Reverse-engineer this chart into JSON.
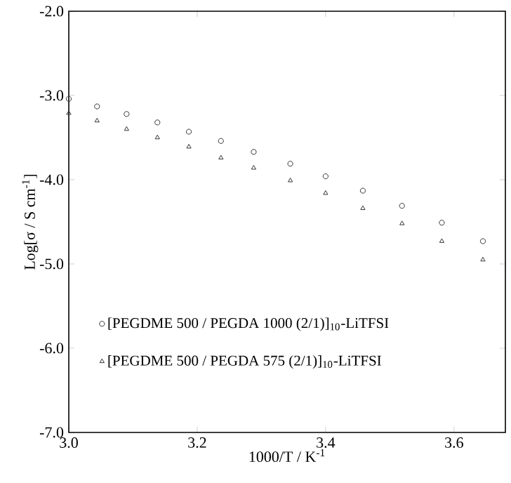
{
  "chart_data": {
    "type": "scatter",
    "xlabel": "1000/T  /  K$^{-1}$",
    "ylabel": "Log[σ / S cm$^{-1}$]",
    "xlim": [
      3.0,
      3.68
    ],
    "xticks": [
      {
        "value": 3.0,
        "label": "3.0"
      },
      {
        "value": 3.2,
        "label": "3.2"
      },
      {
        "value": 3.4,
        "label": "3.4"
      },
      {
        "value": 3.6,
        "label": "3.6"
      }
    ],
    "ylim": [
      -7.0,
      -2.0
    ],
    "yticks": [
      {
        "value": -7.0,
        "label": "-7.0"
      },
      {
        "value": -6.0,
        "label": "-6.0"
      },
      {
        "value": -5.0,
        "label": "-5.0"
      },
      {
        "value": -4.0,
        "label": "-4.0"
      },
      {
        "value": -3.0,
        "label": "-3.0"
      },
      {
        "value": -2.0,
        "label": "-2.0"
      }
    ],
    "grid": false,
    "legend": "bottom left",
    "series": [
      {
        "name": "[PEGDME 500 / PEGDA 1000 (2/1)]$_{10}$-LiTFSI",
        "color": "#333333",
        "marker": "circle",
        "x": [
          3.0,
          3.044,
          3.09,
          3.138,
          3.187,
          3.237,
          3.288,
          3.345,
          3.4,
          3.458,
          3.519,
          3.581,
          3.645
        ],
        "values": [
          -3.04,
          -3.13,
          -3.22,
          -3.32,
          -3.43,
          -3.54,
          -3.67,
          -3.81,
          -3.96,
          -4.13,
          -4.31,
          -4.51,
          -4.73
        ]
      },
      {
        "name": "[PEGDME 500 / PEGDA 575 (2/1)]$_{10}$-LiTFSI",
        "color": "#333333",
        "marker": "triangle",
        "x": [
          3.0,
          3.044,
          3.09,
          3.138,
          3.187,
          3.237,
          3.288,
          3.345,
          3.4,
          3.458,
          3.519,
          3.581,
          3.645
        ],
        "values": [
          -3.21,
          -3.3,
          -3.4,
          -3.5,
          -3.61,
          -3.74,
          -3.86,
          -4.01,
          -4.16,
          -4.34,
          -4.52,
          -4.73,
          -4.95
        ]
      }
    ]
  }
}
